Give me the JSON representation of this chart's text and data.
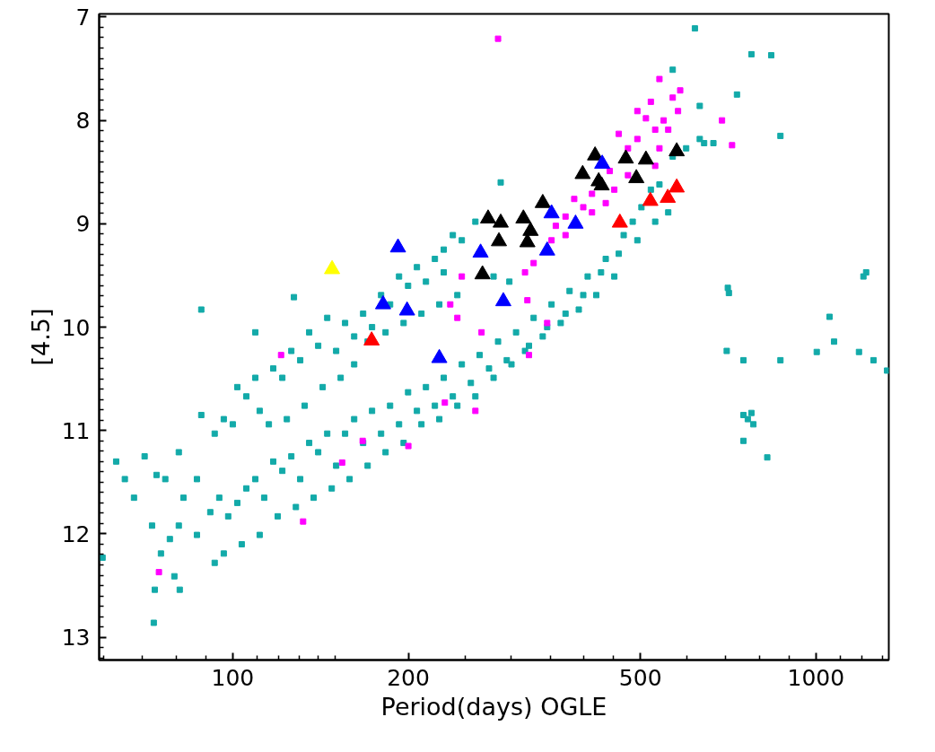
{
  "chart_data": {
    "type": "scatter",
    "xlabel": "Period(days) OGLE",
    "ylabel": "[4.5]",
    "log": "x",
    "grid": false,
    "xlim": [
      59,
      1333
    ],
    "ylim": [
      13.22,
      6.97
    ],
    "xticks": [
      {
        "value": 60,
        "label": null
      },
      {
        "value": 70,
        "label": null
      },
      {
        "value": 80,
        "label": null
      },
      {
        "value": 90,
        "label": null
      },
      100,
      {
        "value": 110,
        "label": null
      },
      {
        "value": 120,
        "label": null
      },
      {
        "value": 130,
        "label": null
      },
      {
        "value": 140,
        "label": null
      },
      {
        "value": 150,
        "label": null
      },
      200,
      {
        "value": 250,
        "label": null
      },
      {
        "value": 300,
        "label": null
      },
      {
        "value": 350,
        "label": null
      },
      {
        "value": 400,
        "label": null
      },
      {
        "value": 450,
        "label": null
      },
      500,
      {
        "value": 600,
        "label": null
      },
      {
        "value": 700,
        "label": null
      },
      {
        "value": 800,
        "label": null
      },
      {
        "value": 900,
        "label": null
      },
      1000,
      {
        "value": 1100,
        "label": null
      },
      {
        "value": 1200,
        "label": null
      },
      {
        "value": 1300,
        "label": null
      }
    ],
    "yticks": [
      7,
      {
        "value": 7.1,
        "label": null
      },
      {
        "value": 7.2,
        "label": null
      },
      {
        "value": 7.3,
        "label": null
      },
      {
        "value": 7.4,
        "label": null
      },
      {
        "value": 7.5,
        "label": null
      },
      {
        "value": 7.6,
        "label": null
      },
      {
        "value": 7.7,
        "label": null
      },
      {
        "value": 7.8,
        "label": null
      },
      {
        "value": 7.9,
        "label": null
      },
      8,
      {
        "value": 8.1,
        "label": null
      },
      {
        "value": 8.2,
        "label": null
      },
      {
        "value": 8.3,
        "label": null
      },
      {
        "value": 8.4,
        "label": null
      },
      {
        "value": 8.5,
        "label": null
      },
      {
        "value": 8.6,
        "label": null
      },
      {
        "value": 8.7,
        "label": null
      },
      {
        "value": 8.8,
        "label": null
      },
      {
        "value": 8.9,
        "label": null
      },
      9,
      {
        "value": 9.1,
        "label": null
      },
      {
        "value": 9.2,
        "label": null
      },
      {
        "value": 9.3,
        "label": null
      },
      {
        "value": 9.4,
        "label": null
      },
      {
        "value": 9.5,
        "label": null
      },
      {
        "value": 9.6,
        "label": null
      },
      {
        "value": 9.7,
        "label": null
      },
      {
        "value": 9.8,
        "label": null
      },
      {
        "value": 9.9,
        "label": null
      },
      10,
      {
        "value": 10.1,
        "label": null
      },
      {
        "value": 10.2,
        "label": null
      },
      {
        "value": 10.3,
        "label": null
      },
      {
        "value": 10.4,
        "label": null
      },
      {
        "value": 10.5,
        "label": null
      },
      {
        "value": 10.6,
        "label": null
      },
      {
        "value": 10.7,
        "label": null
      },
      {
        "value": 10.8,
        "label": null
      },
      {
        "value": 10.9,
        "label": null
      },
      11,
      {
        "value": 11.1,
        "label": null
      },
      {
        "value": 11.2,
        "label": null
      },
      {
        "value": 11.3,
        "label": null
      },
      {
        "value": 11.4,
        "label": null
      },
      {
        "value": 11.5,
        "label": null
      },
      {
        "value": 11.6,
        "label": null
      },
      {
        "value": 11.7,
        "label": null
      },
      {
        "value": 11.8,
        "label": null
      },
      {
        "value": 11.9,
        "label": null
      },
      12,
      {
        "value": 12.1,
        "label": null
      },
      {
        "value": 12.2,
        "label": null
      },
      {
        "value": 12.3,
        "label": null
      },
      {
        "value": 12.4,
        "label": null
      },
      {
        "value": 12.5,
        "label": null
      },
      {
        "value": 12.6,
        "label": null
      },
      {
        "value": 12.7,
        "label": null
      },
      {
        "value": 12.8,
        "label": null
      },
      {
        "value": 12.9,
        "label": null
      },
      13,
      {
        "value": 13.1,
        "label": null
      },
      {
        "value": 13.2,
        "label": null
      }
    ],
    "series": [
      {
        "color": "#13aaa9",
        "marker": "square",
        "x": [
          72.7,
          75.3,
          78.0,
          82.3,
          86.8,
          91.5,
          94.8,
          98.2,
          101.8,
          105.5,
          109.3,
          113.2,
          117.3,
          121.6,
          126.0,
          130.5,
          135.2,
          140.1,
          145.2,
          150.4,
          155.8,
          161.5,
          167.3,
          173.3,
          179.6,
          186.1,
          192.8,
          199.8,
          206.9,
          214.4,
          222.1,
          230,
          238.4,
          247,
          256,
          265,
          275,
          285,
          295,
          306,
          317,
          328,
          340,
          352,
          365,
          378,
          392,
          406,
          420,
          436,
          451,
          468,
          485,
          502,
          521,
          539,
          568,
          599,
          632,
          667,
          558,
          530,
          494,
          459,
          428,
          399,
          372,
          346,
          322,
          300.5,
          280,
          260.6,
          242.7,
          226,
          210.6,
          196.3,
          182.8,
          170.3,
          158.6,
          147.8,
          137.6,
          128.3,
          119.4,
          111.2,
          103.6,
          96.5,
          93.1,
          86.8,
          80.8,
          79.4,
          73.5,
          81.1,
          73.2,
          59.8,
          63.1,
          65.3,
          67.7,
          70.6,
          74.0,
          76.6,
          80.8,
          88.3,
          93.1,
          96.5,
          100,
          101.8,
          105.5,
          109.3,
          111.2,
          117.3,
          121.6,
          126.0,
          130.5,
          135.2,
          140.1,
          145.2,
          150.4,
          155.8,
          161.5,
          167.3,
          173.3,
          179.6,
          186.1,
          192.8,
          199.8,
          206.9,
          214.4,
          222.1,
          230,
          238.4,
          247,
          260.6,
          170.3,
          182.8,
          196.3,
          210.6,
          226,
          242.7,
          280,
          298,
          153.1,
          161.5,
          142.6,
          132.8,
          123.8,
          115.3,
          88.3,
          109.3,
          127.3,
          288,
          230,
          703,
          706,
          709,
          751,
          751,
          764,
          775,
          781,
          751,
          825,
          869,
          1074,
          1003,
          1055,
          1185,
          1206,
          1219,
          1255,
          1324,
          732,
          775,
          838,
          869,
          643,
          620,
          568,
          632
        ],
        "values": [
          11.92,
          12.19,
          12.05,
          11.65,
          11.47,
          11.79,
          11.65,
          11.83,
          11.7,
          11.56,
          11.47,
          11.65,
          11.3,
          11.39,
          11.25,
          11.47,
          11.12,
          11.21,
          11.03,
          11.34,
          11.03,
          10.89,
          11.12,
          10.81,
          11.03,
          10.76,
          10.94,
          10.63,
          10.81,
          10.58,
          10.76,
          10.49,
          10.67,
          10.36,
          10.54,
          10.27,
          10.4,
          10.14,
          10.32,
          10.05,
          10.23,
          9.91,
          10.09,
          9.78,
          9.96,
          9.65,
          9.83,
          9.51,
          9.69,
          9.34,
          9.51,
          9.11,
          8.98,
          8.84,
          8.67,
          8.62,
          8.35,
          8.27,
          8.18,
          8.22,
          8.89,
          8.98,
          9.16,
          9.29,
          9.47,
          9.69,
          9.87,
          10.0,
          10.18,
          10.36,
          10.49,
          10.67,
          10.76,
          10.89,
          10.94,
          11.12,
          11.21,
          11.34,
          11.47,
          11.56,
          11.65,
          11.74,
          11.83,
          12.01,
          12.1,
          12.19,
          12.28,
          12.01,
          11.92,
          12.41,
          12.54,
          12.54,
          12.86,
          12.23,
          11.3,
          11.47,
          11.65,
          11.25,
          11.43,
          11.47,
          11.21,
          10.85,
          11.03,
          10.89,
          10.94,
          10.58,
          10.67,
          10.49,
          10.81,
          10.4,
          10.49,
          10.23,
          10.32,
          10.05,
          10.18,
          9.91,
          10.23,
          9.96,
          10.09,
          9.87,
          10.0,
          9.69,
          9.78,
          9.51,
          9.6,
          9.42,
          9.56,
          9.34,
          9.25,
          9.11,
          9.16,
          8.98,
          10.14,
          10.05,
          9.96,
          9.87,
          9.78,
          9.69,
          9.51,
          9.56,
          10.49,
          10.36,
          10.58,
          10.76,
          10.89,
          10.94,
          9.83,
          10.05,
          9.71,
          8.6,
          9.47,
          10.23,
          9.62,
          9.67,
          10.32,
          10.85,
          10.89,
          10.83,
          10.94,
          11.1,
          11.26,
          10.32,
          10.14,
          10.24,
          9.9,
          10.24,
          9.51,
          9.47,
          10.32,
          10.42,
          7.75,
          7.36,
          7.37,
          8.15,
          8.22,
          7.11,
          7.51,
          7.86
        ]
      },
      {
        "color": "#ff00ff",
        "marker": "square",
        "x": [
          285,
          539,
          585,
          690,
          718,
          568,
          580,
          548,
          530,
          511,
          494,
          476,
          459,
          443,
          413,
          399,
          385,
          372,
          358,
          352,
          328,
          317,
          372,
          413,
          436,
          451,
          530,
          539,
          558,
          494,
          521,
          476,
          320,
          267,
          242.7,
          236,
          247,
          322,
          346,
          121,
          154,
          167,
          132,
          74.7,
          200,
          231,
          260.6
        ],
        "values": [
          7.21,
          7.6,
          7.71,
          8.0,
          8.24,
          7.78,
          7.91,
          8.0,
          8.09,
          7.98,
          8.18,
          8.27,
          8.13,
          8.49,
          8.71,
          8.84,
          8.76,
          8.93,
          9.02,
          9.16,
          9.38,
          9.47,
          9.11,
          8.89,
          8.8,
          8.67,
          8.44,
          8.27,
          8.09,
          7.91,
          7.82,
          8.53,
          9.74,
          10.05,
          9.91,
          9.78,
          9.51,
          10.27,
          9.96,
          10.27,
          11.31,
          11.1,
          11.88,
          12.37,
          11.15,
          10.73,
          10.81
        ]
      },
      {
        "color": "#000000",
        "marker": "triangle",
        "x": [
          274,
          288,
          286,
          268,
          315,
          320,
          324,
          340,
          398,
          418,
          424,
          429,
          472,
          492,
          511,
          577
        ],
        "values": [
          8.95,
          8.99,
          9.17,
          9.49,
          8.95,
          9.18,
          9.07,
          8.8,
          8.52,
          8.34,
          8.59,
          8.63,
          8.37,
          8.56,
          8.38,
          8.3
        ]
      },
      {
        "color": "#0000ff",
        "marker": "triangle",
        "x": [
          192,
          181,
          199,
          226,
          266,
          291,
          352,
          346,
          387,
          430
        ],
        "values": [
          9.23,
          9.78,
          9.84,
          10.3,
          9.28,
          9.75,
          8.9,
          9.26,
          9.0,
          8.42
        ]
      },
      {
        "color": "#ff0000",
        "marker": "triangle",
        "x": [
          173,
          461,
          520,
          557,
          577
        ],
        "values": [
          10.13,
          8.99,
          8.78,
          8.75,
          8.65
        ]
      },
      {
        "color": "#ffff00",
        "marker": "triangle",
        "x": [
          148
        ],
        "values": [
          9.44
        ]
      }
    ]
  }
}
